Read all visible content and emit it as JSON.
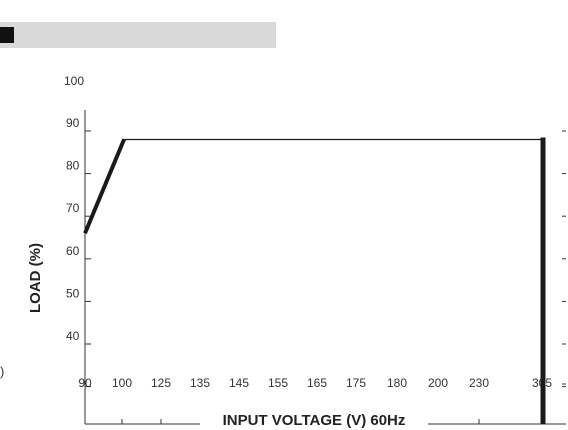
{
  "chart_data": {
    "type": "line",
    "title": "",
    "xlabel": "INPUT VOLTAGE (V) 60Hz",
    "ylabel": "LOAD (%)",
    "x_tick_labels": [
      "90",
      "100",
      "125",
      "135",
      "145",
      "155",
      "165",
      "175",
      "180",
      "200",
      "230",
      "305"
    ],
    "y_tick_labels": [
      "40",
      "50",
      "60",
      "70",
      "80",
      "90",
      "100"
    ],
    "ylim": [
      30,
      100
    ],
    "grid": false,
    "series": [
      {
        "points": [
          {
            "x": "90",
            "y": 66
          },
          {
            "x": "100",
            "y": 88
          },
          {
            "x": "305",
            "y": 88
          },
          {
            "x": "305",
            "y": 0
          }
        ]
      }
    ]
  },
  "colors": {
    "header_bar": "#d9d9d9",
    "header_square": "#111111",
    "line": "#1a1a1a",
    "axis": "#333333"
  },
  "edge_glyph": ")"
}
